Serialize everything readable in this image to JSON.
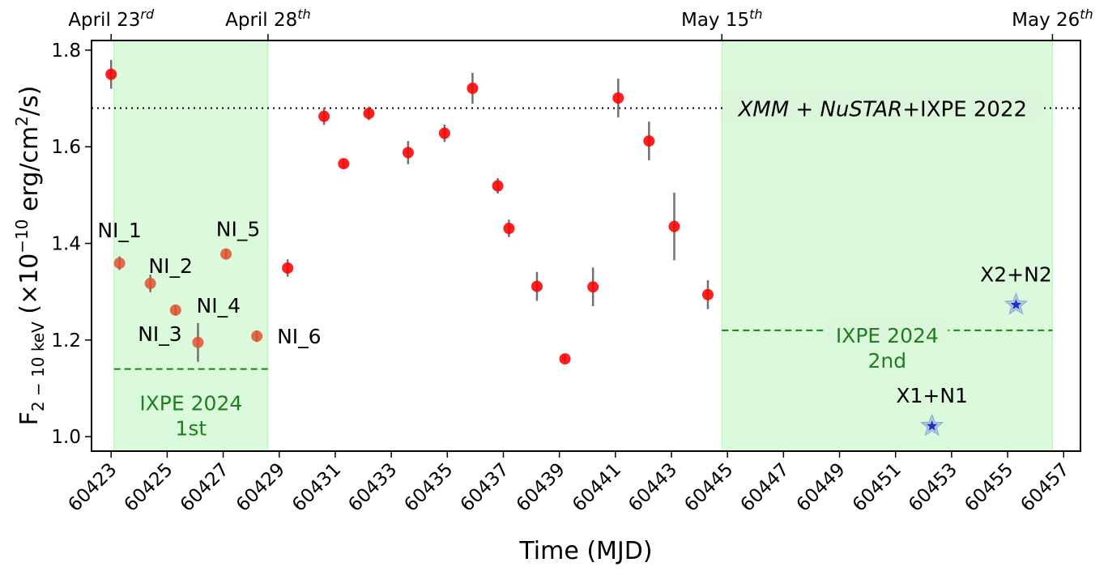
{
  "chart_data": {
    "type": "scatter",
    "title": "",
    "xlabel": "Time (MJD)",
    "ylabel_parts": {
      "base": "F",
      "sub": "2 − 10 keV",
      "rest": " (×10",
      "exp": "−10",
      "unit": " erg/cm",
      "unit_exp": "2",
      "tail": "/s)"
    },
    "xlim": [
      60422.3,
      60457.6
    ],
    "ylim": [
      0.97,
      1.82
    ],
    "x_ticks": [
      60423,
      60425,
      60427,
      60429,
      60431,
      60433,
      60435,
      60437,
      60439,
      60441,
      60443,
      60445,
      60447,
      60449,
      60451,
      60453,
      60455,
      60457
    ],
    "x_tick_labels": [
      "60423",
      "60425",
      "60427",
      "60429",
      "60431",
      "60433",
      "60435",
      "60437",
      "60439",
      "60441",
      "60443",
      "60445",
      "60447",
      "60449",
      "60451",
      "60453",
      "60455",
      "60457"
    ],
    "y_ticks": [
      1.0,
      1.2,
      1.4,
      1.6,
      1.8
    ],
    "y_tick_labels": [
      "1.0",
      "1.2",
      "1.4",
      "1.6",
      "1.8"
    ],
    "top_axis": [
      {
        "x": 60423.0,
        "text": "April 23",
        "sup": "rd"
      },
      {
        "x": 60428.6,
        "text": "April 28",
        "sup": "th"
      },
      {
        "x": 60444.8,
        "text": "May 15",
        "sup": "th"
      },
      {
        "x": 60456.6,
        "text": "May 26",
        "sup": "th"
      }
    ],
    "shaded_regions": [
      {
        "x0": 60423.1,
        "x1": 60428.6,
        "color": "#90ee90"
      },
      {
        "x0": 60444.8,
        "x1": 60456.6,
        "color": "#90ee90"
      }
    ],
    "reference_line": {
      "y": 1.68,
      "label_italic_1": "XMM",
      "label_plus_1": " + ",
      "label_italic_2": "NuSTAR",
      "label_rest": "+IXPE 2022"
    },
    "ixpe_segments": [
      {
        "x0": 60423.1,
        "x1": 60428.6,
        "y": 1.14,
        "line1": "IXPE 2024",
        "line2": "1st"
      },
      {
        "x0": 60444.8,
        "x1": 60456.6,
        "y": 1.22,
        "line1": "IXPE 2024",
        "line2": "2nd"
      }
    ],
    "series": [
      {
        "marker": "circle",
        "color": "#ff0000",
        "points": [
          {
            "x": 60423.0,
            "y": 1.75,
            "err": 0.03
          },
          {
            "x": 60429.3,
            "y": 1.349,
            "err": 0.018
          },
          {
            "x": 60430.6,
            "y": 1.663,
            "err": 0.018
          },
          {
            "x": 60431.3,
            "y": 1.565,
            "err": 0.01
          },
          {
            "x": 60432.2,
            "y": 1.669,
            "err": 0.014
          },
          {
            "x": 60433.6,
            "y": 1.588,
            "err": 0.024
          },
          {
            "x": 60434.9,
            "y": 1.628,
            "err": 0.018
          },
          {
            "x": 60435.9,
            "y": 1.721,
            "err": 0.032
          },
          {
            "x": 60436.8,
            "y": 1.519,
            "err": 0.016
          },
          {
            "x": 60437.2,
            "y": 1.431,
            "err": 0.018
          },
          {
            "x": 60438.2,
            "y": 1.311,
            "err": 0.03
          },
          {
            "x": 60439.2,
            "y": 1.161,
            "err": 0.008
          },
          {
            "x": 60440.2,
            "y": 1.31,
            "err": 0.04
          },
          {
            "x": 60441.1,
            "y": 1.701,
            "err": 0.04
          },
          {
            "x": 60442.2,
            "y": 1.612,
            "err": 0.04
          },
          {
            "x": 60443.1,
            "y": 1.435,
            "err": 0.07
          },
          {
            "x": 60444.3,
            "y": 1.294,
            "err": 0.03
          }
        ]
      },
      {
        "marker": "circle-labeled",
        "color": "#e05030",
        "points": [
          {
            "x": 60423.3,
            "y": 1.359,
            "err": 0.014,
            "label": "NI_1"
          },
          {
            "x": 60424.4,
            "y": 1.317,
            "err": 0.018,
            "label": "NI_2"
          },
          {
            "x": 60426.1,
            "y": 1.195,
            "err": 0.04,
            "label": "NI_3"
          },
          {
            "x": 60425.3,
            "y": 1.262,
            "err": 0.01,
            "label": "NI_4"
          },
          {
            "x": 60427.1,
            "y": 1.378,
            "err": 0.01,
            "label": "NI_5"
          },
          {
            "x": 60428.2,
            "y": 1.208,
            "err": 0.012,
            "label": "NI_6"
          }
        ]
      },
      {
        "marker": "star",
        "color": "#2030c0",
        "points": [
          {
            "x": 60452.3,
            "y": 1.022,
            "err": 0,
            "label": "X1+N1"
          },
          {
            "x": 60455.3,
            "y": 1.273,
            "err": 0,
            "label": "X2+N2"
          }
        ]
      }
    ]
  }
}
